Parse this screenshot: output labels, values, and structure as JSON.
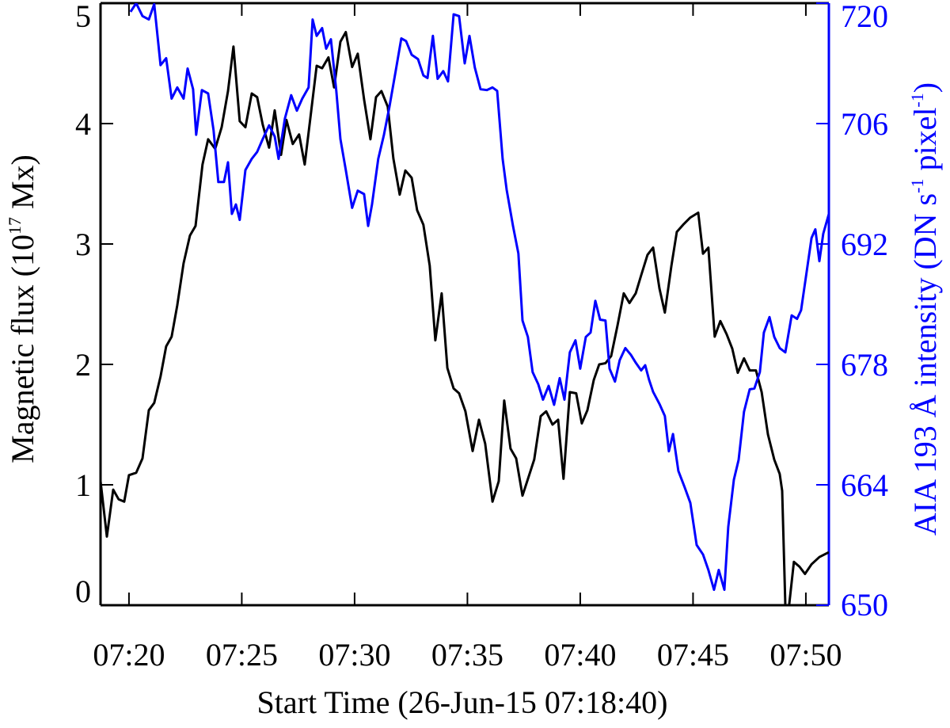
{
  "chart_data": {
    "type": "line",
    "xlabel": "Start Time (26-Jun-15 07:18:40)",
    "ylabel": [
      "Magnetic flux (10",
      "17",
      " Mx)"
    ],
    "y2label": [
      "AIA 193 Å intensity (DN s",
      "-1",
      " pixel",
      "-1",
      ")"
    ],
    "xlim": [
      18.74,
      51.02
    ],
    "xticks": [
      {
        "value": 20,
        "label": "07:20"
      },
      {
        "value": 25,
        "label": "07:25"
      },
      {
        "value": 30,
        "label": "07:30"
      },
      {
        "value": 35,
        "label": "07:35"
      },
      {
        "value": 40,
        "label": "07:40"
      },
      {
        "value": 45,
        "label": "07:45"
      },
      {
        "value": 50,
        "label": "07:50"
      }
    ],
    "ylim": [
      0,
      5
    ],
    "yticks": [
      0,
      1,
      2,
      3,
      4,
      5
    ],
    "y2lim": [
      650,
      720
    ],
    "y2ticks": [
      650,
      664,
      678,
      692,
      706,
      720
    ],
    "series": [
      {
        "color": "#000000",
        "x": [
          18.74,
          19.02,
          19.3,
          19.54,
          19.79,
          20.0,
          20.32,
          20.6,
          20.88,
          21.12,
          21.4,
          21.65,
          21.89,
          22.14,
          22.42,
          22.7,
          22.95,
          23.26,
          23.51,
          23.82,
          24.11,
          24.39,
          24.63,
          24.91,
          25.16,
          25.44,
          25.68,
          25.93,
          26.21,
          26.46,
          26.74,
          26.98,
          27.26,
          27.54,
          27.79,
          28.04,
          28.32,
          28.56,
          28.84,
          29.09,
          29.37,
          29.61,
          29.89,
          30.14,
          30.42,
          30.7,
          30.95,
          31.19,
          31.47,
          31.72,
          32.0,
          32.25,
          32.53,
          32.77,
          33.05,
          33.33,
          33.58,
          33.86,
          34.11,
          34.39,
          34.63,
          34.91,
          35.23,
          35.51,
          35.79,
          36.11,
          36.39,
          36.63,
          36.91,
          37.16,
          37.44,
          37.72,
          37.96,
          38.25,
          38.49,
          38.77,
          39.02,
          39.26,
          39.54,
          39.82,
          40.07,
          40.32,
          40.6,
          40.84,
          41.12,
          41.37,
          41.65,
          41.93,
          42.18,
          42.46,
          42.7,
          42.98,
          43.23,
          43.51,
          43.75,
          44.04,
          44.28,
          44.56,
          44.88,
          45.23,
          45.44,
          45.68,
          45.96,
          46.21,
          46.49,
          46.74,
          46.98,
          47.26,
          47.51,
          47.79,
          48.04,
          48.32,
          48.6,
          48.84,
          48.95,
          49.09,
          49.26,
          49.47,
          49.72,
          49.96,
          50.25,
          50.6,
          51.02
        ],
        "values": [
          1.03,
          0.57,
          0.96,
          0.88,
          0.86,
          1.08,
          1.1,
          1.22,
          1.62,
          1.68,
          1.9,
          2.15,
          2.23,
          2.49,
          2.84,
          3.07,
          3.15,
          3.66,
          3.87,
          3.79,
          3.97,
          4.27,
          4.64,
          4.02,
          3.97,
          4.25,
          4.22,
          3.99,
          3.8,
          4.11,
          3.74,
          4.03,
          3.83,
          3.91,
          3.66,
          4.05,
          4.48,
          4.46,
          4.55,
          4.3,
          4.68,
          4.76,
          4.47,
          4.58,
          4.2,
          3.87,
          4.22,
          4.27,
          4.14,
          3.71,
          3.41,
          3.61,
          3.55,
          3.28,
          3.16,
          2.82,
          2.2,
          2.59,
          1.97,
          1.8,
          1.76,
          1.61,
          1.28,
          1.54,
          1.34,
          0.86,
          1.03,
          1.7,
          1.3,
          1.22,
          0.91,
          1.07,
          1.21,
          1.57,
          1.61,
          1.5,
          1.54,
          1.05,
          1.77,
          1.76,
          1.51,
          1.62,
          1.87,
          2.0,
          2.01,
          2.07,
          2.32,
          2.59,
          2.51,
          2.59,
          2.74,
          2.91,
          2.97,
          2.63,
          2.43,
          2.82,
          3.1,
          3.16,
          3.22,
          3.26,
          2.92,
          2.97,
          2.23,
          2.36,
          2.25,
          2.13,
          1.93,
          2.05,
          1.95,
          1.95,
          1.77,
          1.42,
          1.21,
          1.09,
          0.95,
          0,
          0,
          0.36,
          0.32,
          0.26,
          0.34,
          0.4,
          0.44
        ]
      },
      {
        "color": "#0000ff",
        "axis": "y2",
        "x": [
          20.07,
          20.32,
          20.6,
          20.88,
          21.12,
          21.4,
          21.65,
          21.89,
          22.14,
          22.42,
          22.6,
          22.84,
          22.98,
          23.23,
          23.51,
          23.75,
          23.96,
          24.21,
          24.39,
          24.56,
          24.74,
          24.91,
          25.16,
          25.44,
          25.68,
          25.93,
          26.21,
          26.46,
          26.63,
          26.91,
          27.19,
          27.44,
          27.68,
          27.96,
          28.14,
          28.32,
          28.56,
          28.74,
          28.95,
          29.19,
          29.37,
          29.61,
          29.89,
          30.14,
          30.42,
          30.6,
          30.77,
          31.05,
          31.3,
          31.54,
          31.82,
          32.07,
          32.28,
          32.53,
          32.81,
          33.05,
          33.23,
          33.47,
          33.68,
          33.93,
          34.14,
          34.39,
          34.63,
          34.88,
          35.09,
          35.33,
          35.58,
          35.86,
          36.11,
          36.32,
          36.56,
          36.74,
          37.02,
          37.26,
          37.44,
          37.68,
          37.89,
          38.14,
          38.35,
          38.6,
          38.84,
          39.09,
          39.3,
          39.54,
          39.79,
          40.0,
          40.25,
          40.46,
          40.67,
          40.88,
          41.12,
          41.3,
          41.54,
          41.75,
          42.0,
          42.25,
          42.46,
          42.7,
          42.88,
          43.05,
          43.23,
          43.51,
          43.75,
          43.93,
          44.11,
          44.35,
          44.63,
          44.88,
          45.16,
          45.44,
          45.68,
          45.93,
          46.14,
          46.39,
          46.56,
          46.81,
          47.02,
          47.26,
          47.51,
          47.72,
          47.96,
          48.14,
          48.39,
          48.6,
          48.84,
          49.09,
          49.37,
          49.61,
          49.79,
          50.0,
          50.25,
          50.42,
          50.6,
          50.77,
          51.02
        ],
        "values": [
          719.0,
          720.0,
          718.5,
          718.1,
          719.9,
          712.8,
          713.6,
          708.9,
          710.2,
          708.9,
          712.4,
          710.0,
          704.7,
          709.9,
          709.5,
          705.2,
          699.2,
          699.2,
          701.5,
          695.5,
          696.6,
          694.8,
          700.6,
          701.9,
          702.7,
          704.2,
          705.8,
          704.5,
          701.9,
          706.6,
          709.3,
          707.5,
          708.9,
          710.2,
          718.1,
          716.2,
          717.1,
          714.7,
          715.8,
          709.8,
          704.2,
          700.6,
          696.2,
          698.2,
          697.8,
          694.1,
          696.6,
          701.9,
          704.7,
          707.9,
          712.1,
          715.9,
          715.6,
          714.0,
          713.5,
          711.6,
          711.3,
          716.2,
          711.2,
          712.1,
          710.9,
          718.7,
          718.5,
          713.0,
          716.2,
          712.5,
          710.0,
          709.9,
          710.2,
          709.8,
          701.9,
          698.3,
          694.1,
          690.9,
          683.1,
          681.2,
          677.1,
          675.7,
          673.9,
          675.5,
          673.3,
          676.4,
          673.9,
          679.4,
          680.8,
          677.5,
          681.2,
          681.7,
          685.4,
          683.2,
          683.1,
          677.5,
          676.0,
          678.5,
          679.9,
          679.1,
          678.2,
          677.3,
          677.9,
          676.2,
          674.8,
          673.4,
          672.0,
          667.9,
          669.9,
          665.6,
          663.7,
          661.9,
          657.0,
          655.9,
          654.1,
          651.8,
          654.1,
          651.8,
          659.1,
          664.6,
          666.9,
          672.5,
          675.1,
          675.2,
          677.1,
          681.7,
          683.5,
          681.2,
          679.9,
          679.4,
          683.7,
          683.3,
          684.3,
          688.1,
          692.7,
          693.7,
          690.0,
          693.2,
          695.5
        ]
      }
    ]
  }
}
